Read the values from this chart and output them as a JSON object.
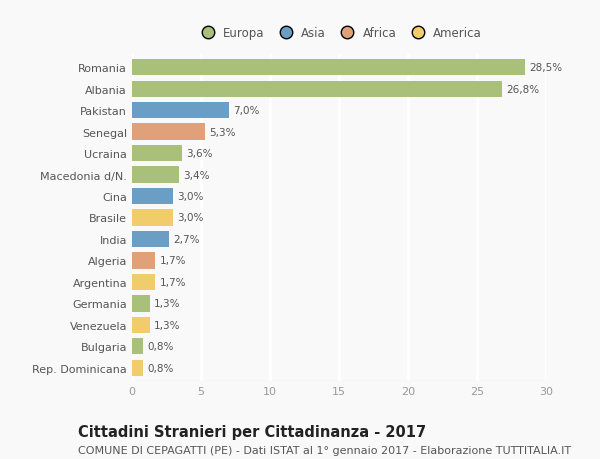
{
  "countries": [
    "Romania",
    "Albania",
    "Pakistan",
    "Senegal",
    "Ucraina",
    "Macedonia d/N.",
    "Cina",
    "Brasile",
    "India",
    "Algeria",
    "Argentina",
    "Germania",
    "Venezuela",
    "Bulgaria",
    "Rep. Dominicana"
  ],
  "values": [
    28.5,
    26.8,
    7.0,
    5.3,
    3.6,
    3.4,
    3.0,
    3.0,
    2.7,
    1.7,
    1.7,
    1.3,
    1.3,
    0.8,
    0.8
  ],
  "labels": [
    "28,5%",
    "26,8%",
    "7,0%",
    "5,3%",
    "3,6%",
    "3,4%",
    "3,0%",
    "3,0%",
    "2,7%",
    "1,7%",
    "1,7%",
    "1,3%",
    "1,3%",
    "0,8%",
    "0,8%"
  ],
  "continents": [
    "Europa",
    "Europa",
    "Asia",
    "Africa",
    "Europa",
    "Europa",
    "Asia",
    "America",
    "Asia",
    "Africa",
    "America",
    "Europa",
    "America",
    "Europa",
    "America"
  ],
  "colors": {
    "Europa": "#a8c07a",
    "Asia": "#6a9ec5",
    "Africa": "#e0a07a",
    "America": "#f0cc6a"
  },
  "legend_order": [
    "Europa",
    "Asia",
    "Africa",
    "America"
  ],
  "title": "Cittadini Stranieri per Cittadinanza - 2017",
  "subtitle": "COMUNE DI CEPAGATTI (PE) - Dati ISTAT al 1° gennaio 2017 - Elaborazione TUTTITALIA.IT",
  "xlim": [
    0,
    30
  ],
  "xticks": [
    0,
    5,
    10,
    15,
    20,
    25,
    30
  ],
  "background_color": "#f9f9f9",
  "grid_color": "#ffffff",
  "bar_height": 0.75,
  "title_fontsize": 10.5,
  "subtitle_fontsize": 8,
  "label_fontsize": 7.5,
  "tick_fontsize": 8,
  "legend_fontsize": 8.5
}
